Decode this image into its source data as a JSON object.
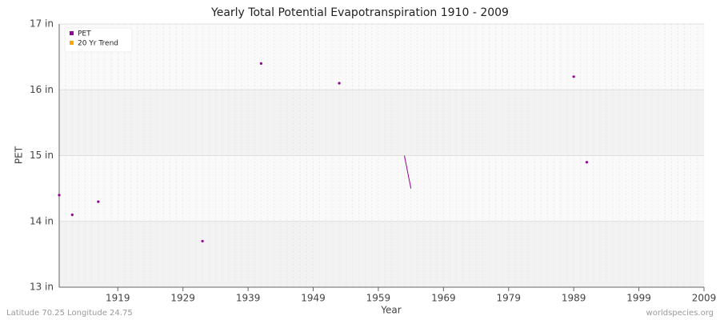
{
  "chart_data": {
    "type": "line",
    "title": "Yearly Total Potential Evapotranspiration 1910 - 2009",
    "x_label": "Year",
    "y_label": "PET",
    "footer_left": "Latitude 70.25 Longitude 24.75",
    "footer_right": "worldspecies.org",
    "x": [
      1910,
      1911,
      1912,
      1913,
      1914,
      1915,
      1916,
      1917,
      1918,
      1919,
      1920,
      1921,
      1922,
      1923,
      1924,
      1925,
      1926,
      1927,
      1928,
      1929,
      1930,
      1931,
      1932,
      1933,
      1934,
      1935,
      1936,
      1937,
      1938,
      1939,
      1940,
      1941,
      1942,
      1943,
      1944,
      1945,
      1946,
      1947,
      1948,
      1949,
      1950,
      1951,
      1952,
      1953,
      1954,
      1955,
      1956,
      1957,
      1958,
      1959,
      1960,
      1961,
      1962,
      1963,
      1964,
      1965,
      1966,
      1967,
      1968,
      1969,
      1970,
      1971,
      1972,
      1973,
      1974,
      1975,
      1976,
      1977,
      1978,
      1979,
      1980,
      1981,
      1982,
      1983,
      1984,
      1985,
      1986,
      1987,
      1988,
      1989,
      1990,
      1991,
      1992,
      1993,
      1994,
      1995,
      1996,
      1997,
      1998,
      1999,
      2000,
      2001,
      2002,
      2003,
      2004,
      2005,
      2006,
      2007,
      2008,
      2009
    ],
    "series": [
      {
        "name": "PET",
        "color": "#990099",
        "values": [
          14.4,
          null,
          14.1,
          null,
          null,
          null,
          14.3,
          null,
          null,
          null,
          null,
          null,
          null,
          null,
          null,
          null,
          null,
          null,
          null,
          null,
          null,
          null,
          13.7,
          null,
          null,
          null,
          null,
          null,
          null,
          null,
          null,
          16.4,
          null,
          null,
          null,
          null,
          null,
          null,
          null,
          null,
          null,
          null,
          null,
          16.1,
          null,
          null,
          null,
          null,
          null,
          null,
          null,
          null,
          null,
          15.0,
          14.5,
          null,
          null,
          null,
          null,
          null,
          null,
          null,
          null,
          null,
          null,
          null,
          null,
          null,
          null,
          null,
          null,
          null,
          null,
          null,
          null,
          null,
          null,
          null,
          null,
          16.2,
          null,
          14.9,
          null,
          null,
          null,
          null,
          null,
          null,
          null,
          null,
          null,
          null,
          null,
          null,
          null,
          null,
          null,
          null,
          null,
          null
        ]
      },
      {
        "name": "20 Yr Trend",
        "color": "#ffa500",
        "values": [
          null,
          null,
          null,
          null,
          null,
          null,
          null,
          null,
          null,
          null,
          null,
          null,
          null,
          null,
          null,
          null,
          null,
          null,
          null,
          null,
          null,
          null,
          null,
          null,
          null,
          null,
          null,
          null,
          null,
          null,
          null,
          null,
          null,
          null,
          null,
          null,
          null,
          null,
          null,
          null,
          null,
          null,
          null,
          null,
          null,
          null,
          null,
          null,
          null,
          null,
          null,
          null,
          null,
          null,
          null,
          null,
          null,
          null,
          null,
          null,
          null,
          null,
          null,
          null,
          null,
          null,
          null,
          null,
          null,
          null,
          null,
          null,
          null,
          null,
          null,
          null,
          null,
          null,
          null,
          null,
          null,
          null,
          null,
          null,
          null,
          null,
          null,
          null,
          null,
          null,
          null,
          null,
          null,
          null,
          null,
          null,
          null,
          null,
          null,
          null
        ]
      }
    ],
    "xlim": [
      1910,
      2009
    ],
    "xticks": [
      1919,
      1929,
      1939,
      1949,
      1959,
      1969,
      1979,
      1989,
      1999,
      2009
    ],
    "ylim": [
      13,
      17
    ],
    "yticks": [
      {
        "value": 13,
        "label": "13 in"
      },
      {
        "value": 14,
        "label": "14 in"
      },
      {
        "value": 15,
        "label": "15 in"
      },
      {
        "value": 16,
        "label": "16 in"
      },
      {
        "value": 17,
        "label": "17 in"
      }
    ],
    "grid": true,
    "legend": "top-left"
  }
}
